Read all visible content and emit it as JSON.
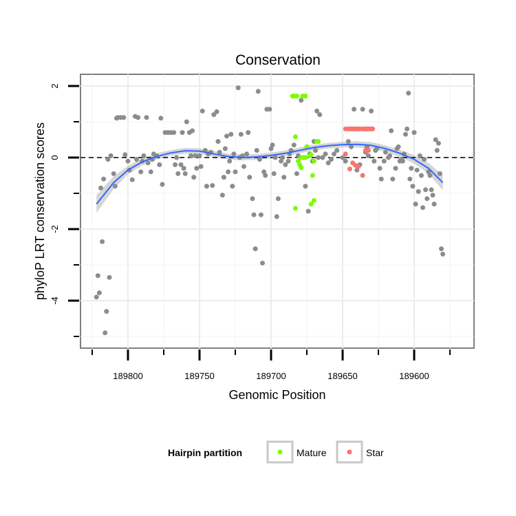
{
  "chart_data": {
    "type": "scatter",
    "title": "Conservation",
    "xlabel": "Genomic Position",
    "ylabel": "phyloP LRT conservation scores",
    "x_reversed": true,
    "xlim": [
      189830,
      189560
    ],
    "ylim": [
      -5.2,
      2.3
    ],
    "x_ticks": [
      189800,
      189750,
      189700,
      189650,
      189600
    ],
    "x_tick_labels": [
      "189800",
      "189750",
      "189700",
      "189650",
      "189600"
    ],
    "y_ticks": [
      2,
      0,
      -2,
      -4
    ],
    "y_tick_labels": [
      "2",
      "0",
      "-2",
      "-4"
    ],
    "grid": true,
    "reference_line": {
      "y": 0,
      "style": "dashed"
    },
    "legend": {
      "title": "Hairpin partition",
      "placement": "bottom",
      "entries": [
        {
          "label": "Mature",
          "color": "#7cfc00"
        },
        {
          "label": "Star",
          "color": "#f8766d"
        }
      ]
    },
    "colors": {
      "other": "#8c8c8c",
      "Mature": "#7cfc00",
      "Star": "#f8766d",
      "smooth": "#3366ff",
      "band": "#cccccc"
    },
    "series": [
      {
        "group": "other",
        "points": [
          [
            189822,
            -3.9
          ],
          [
            189821,
            -3.3
          ],
          [
            189820,
            -3.78
          ],
          [
            189818,
            -2.35
          ],
          [
            189816,
            -4.9
          ],
          [
            189815,
            -4.3
          ],
          [
            189813,
            -3.35
          ],
          [
            189819,
            -0.85
          ],
          [
            189817,
            -0.6
          ],
          [
            189814,
            -0.05
          ],
          [
            189812,
            0.05
          ],
          [
            189810,
            -0.45
          ],
          [
            189809,
            -0.8
          ],
          [
            189808,
            1.1
          ],
          [
            189807,
            1.12
          ],
          [
            189805,
            1.12
          ],
          [
            189803,
            1.12
          ],
          [
            189802,
            0.08
          ],
          [
            189800,
            -0.1
          ],
          [
            189799,
            -0.35
          ],
          [
            189797,
            -0.62
          ],
          [
            189795,
            1.15
          ],
          [
            189794,
            -0.05
          ],
          [
            189793,
            1.12
          ],
          [
            189791,
            -0.4
          ],
          [
            189790,
            -0.1
          ],
          [
            189789,
            0.05
          ],
          [
            189787,
            1.12
          ],
          [
            189786,
            -0.15
          ],
          [
            189784,
            -0.4
          ],
          [
            189783,
            -0.05
          ],
          [
            189782,
            0.1
          ],
          [
            189780,
            0.05
          ],
          [
            189778,
            -0.2
          ],
          [
            189777,
            1.1
          ],
          [
            189776,
            -0.75
          ],
          [
            189774,
            0.7
          ],
          [
            189772,
            0.7
          ],
          [
            189770,
            0.7
          ],
          [
            189768,
            0.7
          ],
          [
            189767,
            -0.2
          ],
          [
            189766,
            0.0
          ],
          [
            189765,
            -0.45
          ],
          [
            189763,
            -0.2
          ],
          [
            189762,
            0.7
          ],
          [
            189761,
            -0.3
          ],
          [
            189760,
            -0.45
          ],
          [
            189759,
            1.0
          ],
          [
            189757,
            0.7
          ],
          [
            189756,
            0.05
          ],
          [
            189755,
            0.75
          ],
          [
            189754,
            -0.55
          ],
          [
            189753,
            0.05
          ],
          [
            189752,
            -0.3
          ],
          [
            189750,
            0.05
          ],
          [
            189749,
            -0.25
          ],
          [
            189748,
            1.3
          ],
          [
            189746,
            0.2
          ],
          [
            189745,
            -0.8
          ],
          [
            189744,
            0.1
          ],
          [
            189742,
            0.15
          ],
          [
            189741,
            -0.78
          ],
          [
            189740,
            1.2
          ],
          [
            189738,
            1.28
          ],
          [
            189737,
            0.45
          ],
          [
            189736,
            0.15
          ],
          [
            189734,
            -1.05
          ],
          [
            189733,
            -0.55
          ],
          [
            189732,
            0.25
          ],
          [
            189731,
            0.6
          ],
          [
            189730,
            -0.4
          ],
          [
            189729,
            -0.1
          ],
          [
            189728,
            0.65
          ],
          [
            189727,
            -0.8
          ],
          [
            189726,
            0.1
          ],
          [
            189725,
            -0.4
          ],
          [
            189723,
            1.95
          ],
          [
            189722,
            0.0
          ],
          [
            189721,
            0.65
          ],
          [
            189720,
            0.05
          ],
          [
            189719,
            -0.25
          ],
          [
            189717,
            0.1
          ],
          [
            189716,
            0.7
          ],
          [
            189715,
            -0.55
          ],
          [
            189713,
            -1.15
          ],
          [
            189712,
            -1.6
          ],
          [
            189711,
            -2.55
          ],
          [
            189710,
            0.2
          ],
          [
            189709,
            1.85
          ],
          [
            189708,
            -0.05
          ],
          [
            189707,
            -1.6
          ],
          [
            189706,
            -2.95
          ],
          [
            189705,
            -0.4
          ],
          [
            189704,
            -0.5
          ],
          [
            189703,
            1.35
          ],
          [
            189701,
            1.35
          ],
          [
            189700,
            0.25
          ],
          [
            189699,
            0.35
          ],
          [
            189698,
            -0.45
          ],
          [
            189697,
            0.0
          ],
          [
            189696,
            -1.65
          ],
          [
            189695,
            -1.15
          ],
          [
            189693,
            -0.1
          ],
          [
            189692,
            0.0
          ],
          [
            189691,
            -0.55
          ],
          [
            189690,
            -0.2
          ],
          [
            189688,
            -0.1
          ],
          [
            189687,
            0.1
          ],
          [
            189686,
            0.2
          ],
          [
            189684,
            0.35
          ],
          [
            189682,
            -0.45
          ],
          [
            189681,
            0.05
          ],
          [
            189679,
            1.6
          ],
          [
            189677,
            0.0
          ],
          [
            189676,
            -0.8
          ],
          [
            189675,
            0.3
          ],
          [
            189674,
            -1.5
          ],
          [
            189673,
            0.1
          ],
          [
            189671,
            -0.1
          ],
          [
            189670,
            0.45
          ],
          [
            189669,
            0.2
          ],
          [
            189668,
            1.3
          ],
          [
            189667,
            0.0
          ],
          [
            189666,
            1.2
          ],
          [
            189664,
            0.0
          ],
          [
            189662,
            0.1
          ],
          [
            189660,
            -0.15
          ],
          [
            189658,
            -0.05
          ],
          [
            189656,
            0.1
          ],
          [
            189654,
            0.2
          ],
          [
            189650,
            0.0
          ],
          [
            189648,
            -0.1
          ],
          [
            189646,
            0.45
          ],
          [
            189644,
            0.3
          ],
          [
            189642,
            1.35
          ],
          [
            189640,
            -0.35
          ],
          [
            189638,
            -0.2
          ],
          [
            189636,
            1.35
          ],
          [
            189634,
            0.15
          ],
          [
            189633,
            0.3
          ],
          [
            189632,
            0.05
          ],
          [
            189630,
            1.3
          ],
          [
            189628,
            -0.1
          ],
          [
            189627,
            0.2
          ],
          [
            189626,
            0.25
          ],
          [
            189624,
            -0.3
          ],
          [
            189623,
            -0.6
          ],
          [
            189621,
            -0.1
          ],
          [
            189620,
            0.15
          ],
          [
            189618,
            0.0
          ],
          [
            189617,
            0.05
          ],
          [
            189616,
            0.75
          ],
          [
            189615,
            -0.6
          ],
          [
            189613,
            -0.3
          ],
          [
            189612,
            0.25
          ],
          [
            189611,
            0.3
          ],
          [
            189610,
            -0.1
          ],
          [
            189609,
            -0.05
          ],
          [
            189608,
            -0.1
          ],
          [
            189607,
            0.1
          ],
          [
            189606,
            0.65
          ],
          [
            189605,
            0.8
          ],
          [
            189604,
            1.8
          ],
          [
            189603,
            -0.6
          ],
          [
            189602,
            -0.3
          ],
          [
            189601,
            -0.8
          ],
          [
            189600,
            0.7
          ],
          [
            189599,
            -1.3
          ],
          [
            189598,
            -0.35
          ],
          [
            189597,
            -0.95
          ],
          [
            189596,
            0.05
          ],
          [
            189595,
            -0.5
          ],
          [
            189594,
            -1.4
          ],
          [
            189593,
            -0.05
          ],
          [
            189592,
            -0.9
          ],
          [
            189591,
            -1.15
          ],
          [
            189590,
            -0.4
          ],
          [
            189589,
            -0.5
          ],
          [
            189588,
            -0.9
          ],
          [
            189587,
            -1.05
          ],
          [
            189586,
            -1.3
          ],
          [
            189585,
            0.5
          ],
          [
            189584,
            0.2
          ],
          [
            189583,
            0.4
          ],
          [
            189582,
            -0.45
          ],
          [
            189581,
            -2.55
          ],
          [
            189580,
            -2.7
          ]
        ]
      },
      {
        "group": "Mature",
        "points": [
          [
            189685,
            1.72
          ],
          [
            189684,
            1.72
          ],
          [
            189682,
            1.72
          ],
          [
            189678,
            1.72
          ],
          [
            189677,
            1.72
          ],
          [
            189676,
            1.72
          ],
          [
            189683,
            0.58
          ],
          [
            189681,
            -0.1
          ],
          [
            189680,
            -0.2
          ],
          [
            189679,
            0.0
          ],
          [
            189677,
            0.0
          ],
          [
            189676,
            0.0
          ],
          [
            189675,
            0.3
          ],
          [
            189673,
            0.05
          ],
          [
            189672,
            0.08
          ],
          [
            189671,
            -0.5
          ],
          [
            189670,
            -0.1
          ],
          [
            189668,
            0.45
          ],
          [
            189667,
            0.45
          ],
          [
            189683,
            -1.42
          ],
          [
            189672,
            -1.3
          ],
          [
            189670,
            -1.2
          ],
          [
            189679,
            -0.28
          ]
        ]
      },
      {
        "group": "Star",
        "points": [
          [
            189648,
            0.8
          ],
          [
            189646,
            0.8
          ],
          [
            189645,
            0.8
          ],
          [
            189644,
            0.8
          ],
          [
            189643,
            0.8
          ],
          [
            189642,
            0.8
          ],
          [
            189641,
            0.8
          ],
          [
            189640,
            0.8
          ],
          [
            189639,
            0.8
          ],
          [
            189638,
            0.8
          ],
          [
            189636,
            0.8
          ],
          [
            189635,
            0.8
          ],
          [
            189634,
            0.8
          ],
          [
            189633,
            0.8
          ],
          [
            189632,
            0.8
          ],
          [
            189631,
            0.8
          ],
          [
            189630,
            0.8
          ],
          [
            189629,
            0.8
          ],
          [
            189648,
            0.1
          ],
          [
            189645,
            -0.32
          ],
          [
            189643,
            -0.15
          ],
          [
            189641,
            -0.22
          ],
          [
            189639,
            -0.25
          ],
          [
            189636,
            -0.5
          ],
          [
            189634,
            0.2
          ],
          [
            189633,
            0.2
          ],
          [
            189632,
            0.2
          ]
        ]
      }
    ],
    "smooth": {
      "x": [
        189822,
        189810,
        189800,
        189790,
        189780,
        189770,
        189760,
        189750,
        189740,
        189730,
        189720,
        189710,
        189700,
        189690,
        189680,
        189670,
        189660,
        189650,
        189640,
        189630,
        189620,
        189610,
        189600,
        189590,
        189585,
        189580
      ],
      "y": [
        -1.3,
        -0.7,
        -0.35,
        -0.12,
        0.03,
        0.13,
        0.19,
        0.18,
        0.1,
        0.03,
        0.0,
        0.02,
        0.06,
        0.12,
        0.2,
        0.28,
        0.33,
        0.36,
        0.37,
        0.34,
        0.25,
        0.12,
        -0.05,
        -0.3,
        -0.5,
        -0.7
      ],
      "band_halfwidth": [
        0.25,
        0.18,
        0.12,
        0.1,
        0.09,
        0.08,
        0.08,
        0.08,
        0.08,
        0.08,
        0.08,
        0.08,
        0.08,
        0.08,
        0.08,
        0.08,
        0.08,
        0.08,
        0.09,
        0.09,
        0.09,
        0.1,
        0.12,
        0.15,
        0.18,
        0.22
      ]
    }
  }
}
